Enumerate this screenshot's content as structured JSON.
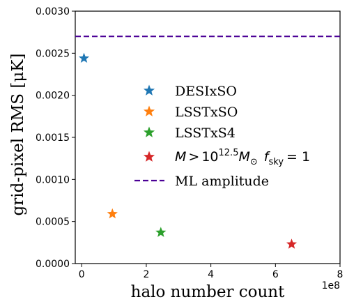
{
  "chart_data": {
    "type": "scatter",
    "xlabel": "halo number count",
    "ylabel": "grid-pixel RMS [μK]",
    "x_offset_text": "1e8",
    "xlim": [
      -0.2,
      8
    ],
    "ylim": [
      0,
      0.003
    ],
    "x_ticks": [
      0,
      2,
      4,
      6,
      8
    ],
    "y_ticks": [
      0.0,
      0.0005,
      0.001,
      0.0015,
      0.002,
      0.0025,
      0.003
    ],
    "x_tick_labels": [
      "0",
      "2",
      "4",
      "6",
      "8"
    ],
    "y_tick_labels": [
      "0.0000",
      "0.0005",
      "0.0010",
      "0.0015",
      "0.0020",
      "0.0025",
      "0.0030"
    ],
    "series": [
      {
        "name": "DESIxSO",
        "color": "#1f77b4",
        "marker": "star",
        "x": 0.07,
        "y": 0.00244
      },
      {
        "name": "LSSTxSO",
        "color": "#ff7f0e",
        "marker": "star",
        "x": 0.95,
        "y": 0.00059
      },
      {
        "name": "LSSTxS4",
        "color": "#2ca02c",
        "marker": "star",
        "x": 2.45,
        "y": 0.00037
      },
      {
        "name": "M>10^12.5 M_sun f_sky=1",
        "color": "#d62728",
        "marker": "star",
        "x": 6.5,
        "y": 0.00023
      }
    ],
    "hlines": [
      {
        "name": "ML amplitude",
        "y": 0.0027,
        "color": "#4b0096",
        "style": "dashed"
      }
    ],
    "legend": {
      "placement": "center",
      "labels": [
        "DESIxSO",
        "LSSTxSO",
        "LSSTxS4",
        "M>10^12.5 M_sun f_sky=1",
        "ML amplitude"
      ],
      "math_label": {
        "M": "M",
        "gt": ">",
        "base": "10",
        "exp": "12.5",
        "M2": "M",
        "sun": "⊙",
        "f": "f",
        "sky": "sky",
        "eq": "= 1"
      }
    },
    "grid": false
  }
}
